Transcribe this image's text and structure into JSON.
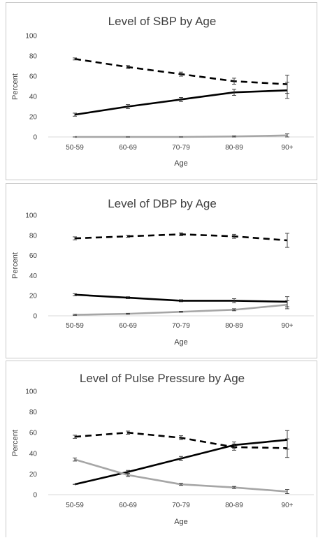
{
  "chart_data": [
    {
      "type": "line",
      "title": "Level of SBP by Age",
      "xlabel": "Age",
      "ylabel": "Percent",
      "ylim": [
        0,
        100
      ],
      "yticks": [
        0,
        20,
        40,
        60,
        80,
        100
      ],
      "categories": [
        "50-59",
        "60-69",
        "70-79",
        "80-89",
        "90+"
      ],
      "grid": false,
      "series": [
        {
          "style": "dashed",
          "color": "#000000",
          "values": [
            77,
            69,
            62,
            55,
            52
          ],
          "error": [
            1,
            1.5,
            2,
            3,
            9
          ]
        },
        {
          "style": "solid",
          "color": "#000000",
          "values": [
            22,
            30,
            37,
            44,
            46
          ],
          "error": [
            1.5,
            2,
            2,
            3,
            8
          ]
        },
        {
          "style": "solid",
          "color": "#a6a6a6",
          "values": [
            0,
            0,
            0,
            0.5,
            1.5
          ],
          "error": [
            0,
            0,
            0,
            0.5,
            1.5
          ]
        }
      ]
    },
    {
      "type": "line",
      "title": "Level of DBP by Age",
      "xlabel": "Age",
      "ylabel": "Percent",
      "ylim": [
        0,
        100
      ],
      "yticks": [
        0,
        20,
        40,
        60,
        80,
        100
      ],
      "categories": [
        "50-59",
        "60-69",
        "70-79",
        "80-89",
        "90+"
      ],
      "grid": false,
      "series": [
        {
          "style": "dashed",
          "color": "#000000",
          "values": [
            77,
            79,
            81,
            79,
            75
          ],
          "error": [
            1.5,
            1,
            1.5,
            2,
            7
          ]
        },
        {
          "style": "solid",
          "color": "#000000",
          "values": [
            21,
            18,
            15,
            15,
            14
          ],
          "error": [
            1,
            1,
            1,
            2,
            5
          ]
        },
        {
          "style": "solid",
          "color": "#a6a6a6",
          "values": [
            1,
            2,
            4,
            6,
            11
          ],
          "error": [
            0.5,
            0.5,
            0.5,
            1,
            4
          ]
        }
      ]
    },
    {
      "type": "line",
      "title": "Level of Pulse Pressure by Age",
      "xlabel": "Age",
      "ylabel": "Percent",
      "ylim": [
        0,
        100
      ],
      "yticks": [
        0,
        20,
        40,
        60,
        80,
        100
      ],
      "categories": [
        "50-59",
        "60-69",
        "70-79",
        "80-89",
        "90+"
      ],
      "grid": false,
      "series": [
        {
          "style": "dashed",
          "color": "#000000",
          "values": [
            56,
            60,
            55,
            46,
            45
          ],
          "error": [
            1.5,
            1.5,
            2,
            3,
            9
          ]
        },
        {
          "style": "solid",
          "color": "#000000",
          "values": [
            10,
            22,
            35,
            48,
            53
          ],
          "error": [
            0,
            1.5,
            2,
            3,
            9
          ]
        },
        {
          "style": "solid",
          "color": "#a6a6a6",
          "values": [
            34,
            19,
            10,
            7,
            3
          ],
          "error": [
            1.5,
            1.5,
            1,
            1,
            2
          ]
        }
      ]
    }
  ]
}
